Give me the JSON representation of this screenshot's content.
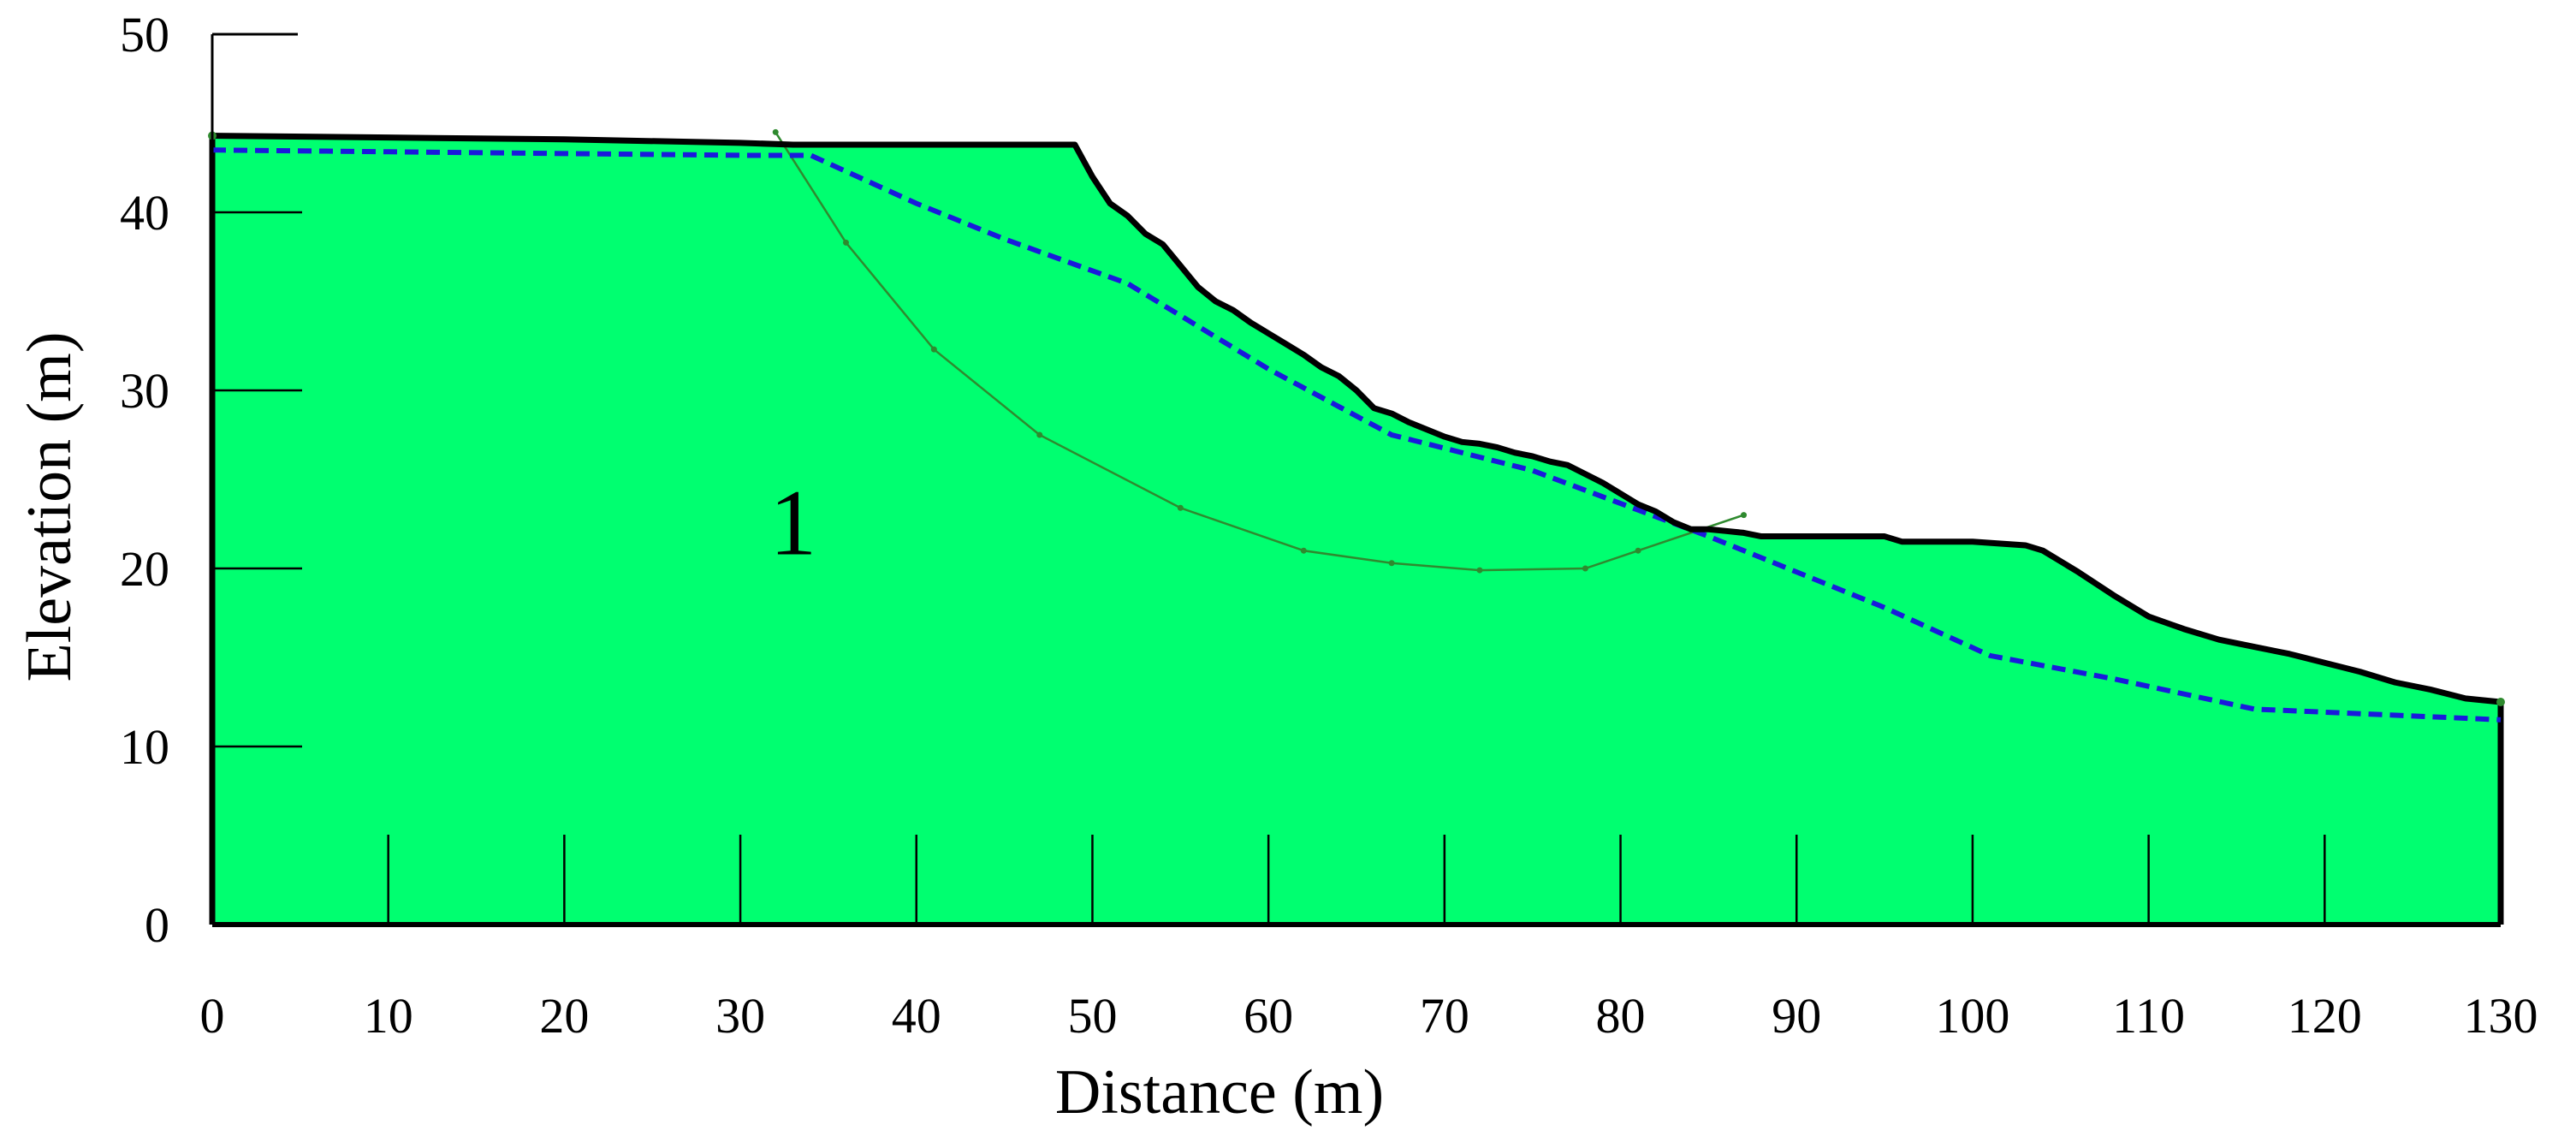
{
  "chart_data": {
    "type": "area",
    "title": "",
    "xlabel": "Distance (m)",
    "ylabel": "Elevation (m)",
    "xlim": [
      0,
      130
    ],
    "ylim": [
      0,
      50
    ],
    "x_ticks": [
      0,
      10,
      20,
      30,
      40,
      50,
      60,
      70,
      80,
      90,
      100,
      110,
      120,
      130
    ],
    "y_ticks": [
      0,
      10,
      20,
      30,
      40,
      50
    ],
    "x_tick_labels": [
      "0",
      "10",
      "20",
      "30",
      "40",
      "50",
      "60",
      "70",
      "80",
      "90",
      "100",
      "110",
      "120",
      "130"
    ],
    "y_tick_labels": [
      "0",
      "10",
      "20",
      "30",
      "40",
      "50"
    ],
    "region_label": "1",
    "region_label_position": {
      "x": 33,
      "y": 22
    },
    "colors": {
      "soil_fill": "#00ff70",
      "ground_outline": "#000000",
      "phreatic_line": "#1a1adc",
      "slip_surface": "#2f8a2f",
      "axes": "#000000"
    },
    "series": [
      {
        "name": "ground surface",
        "style": "solid-thick",
        "x": [
          0,
          10,
          20,
          30,
          33,
          49,
          50,
          51,
          52,
          53,
          54,
          55,
          56,
          57,
          58,
          59,
          60,
          61,
          62,
          63,
          64,
          65,
          66,
          67,
          68,
          69,
          70,
          71,
          72,
          73,
          74,
          75,
          76,
          77,
          78,
          79,
          80,
          81,
          82,
          83,
          84,
          85,
          86,
          87,
          88,
          89,
          90,
          95,
          96,
          100,
          103,
          104,
          106,
          108,
          110,
          112,
          114,
          116,
          118,
          120,
          122,
          124,
          126,
          128,
          130
        ],
        "y": [
          44.3,
          44.2,
          44.1,
          43.9,
          43.8,
          43.8,
          42.0,
          40.5,
          39.8,
          38.8,
          38.2,
          37.0,
          35.8,
          35.0,
          34.5,
          33.8,
          33.2,
          32.6,
          32.0,
          31.3,
          30.8,
          30.0,
          29.0,
          28.7,
          28.2,
          27.8,
          27.4,
          27.1,
          27.0,
          26.8,
          26.5,
          26.3,
          26.0,
          25.8,
          25.3,
          24.8,
          24.2,
          23.6,
          23.2,
          22.6,
          22.2,
          22.2,
          22.1,
          22.0,
          21.8,
          21.8,
          21.8,
          21.8,
          21.5,
          21.5,
          21.3,
          21.0,
          19.8,
          18.5,
          17.3,
          16.6,
          16.0,
          15.6,
          15.2,
          14.7,
          14.2,
          13.6,
          13.2,
          12.7,
          12.5
        ]
      },
      {
        "name": "phreatic line",
        "style": "dashed",
        "x": [
          0,
          10,
          20,
          30,
          34,
          40,
          45,
          52,
          60,
          67,
          75,
          85,
          95,
          101,
          108,
          116,
          130
        ],
        "y": [
          43.5,
          43.4,
          43.3,
          43.2,
          43.2,
          40.5,
          38.5,
          36.0,
          31.2,
          27.5,
          25.5,
          21.8,
          17.8,
          15.1,
          13.8,
          12.1,
          11.5
        ]
      },
      {
        "name": "critical slip surface",
        "style": "thin",
        "x": [
          32,
          36,
          41,
          47,
          55,
          62,
          67,
          72,
          78,
          81,
          87
        ],
        "y": [
          44.5,
          38.3,
          32.3,
          27.5,
          23.4,
          21.0,
          20.3,
          19.9,
          20.0,
          21.0,
          23.0
        ]
      }
    ]
  }
}
